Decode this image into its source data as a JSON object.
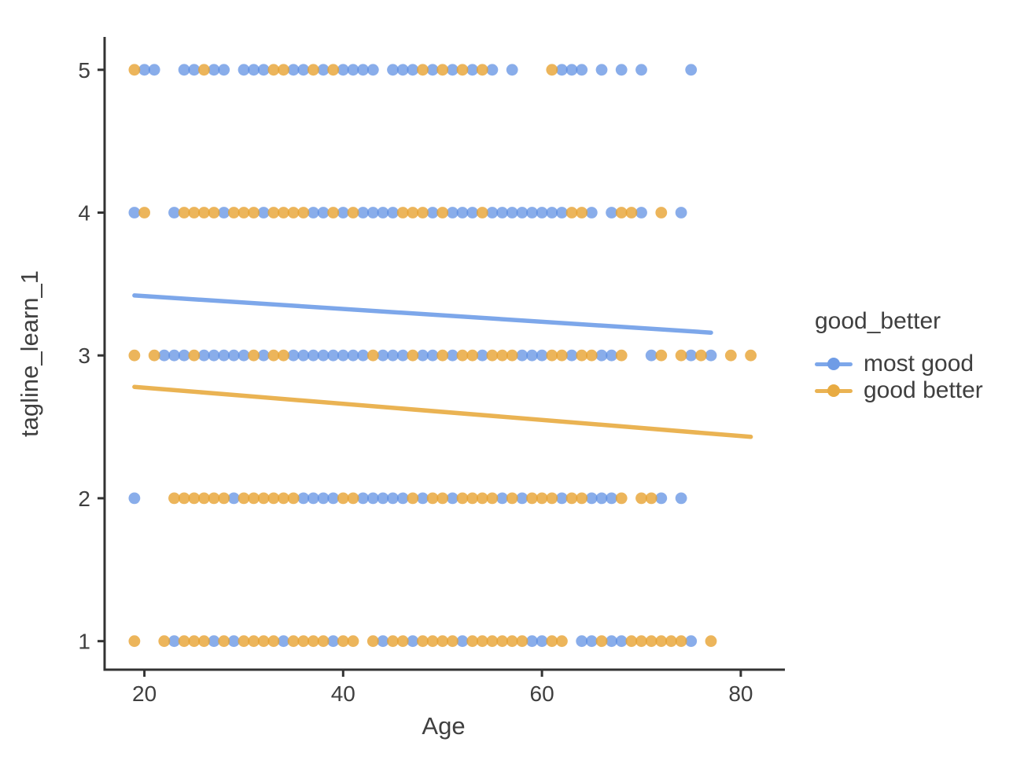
{
  "chart_data": {
    "type": "scatter",
    "title": "",
    "xlabel": "Age",
    "ylabel": "tagline_learn_1",
    "xlim": [
      16,
      84.2
    ],
    "ylim": [
      0.8,
      5.23
    ],
    "x_ticks": [
      20,
      40,
      60,
      80
    ],
    "y_ticks": [
      1,
      2,
      3,
      4,
      5
    ],
    "grid": "off",
    "colors": {
      "most_good_point": "#5b8ee2",
      "good_better_point": "#e7a232",
      "most_good_line": "#7da7ea",
      "good_better_line": "#eab353",
      "axis": "#333333",
      "text": "#3f3f3f"
    },
    "legend": {
      "title": "good_better",
      "position": "right",
      "entries": [
        {
          "name": "most good",
          "line_color": "#7da7ea",
          "point_color": "#6f9ce6"
        },
        {
          "name": "good better",
          "line_color": "#eab353",
          "point_color": "#e8ab42"
        }
      ]
    },
    "series": [
      {
        "name": "most good",
        "color": "#5b8ee2",
        "points": [
          [
            20,
            5
          ],
          [
            21,
            5
          ],
          [
            24,
            5
          ],
          [
            25,
            5
          ],
          [
            27,
            5
          ],
          [
            28,
            5
          ],
          [
            30,
            5
          ],
          [
            31,
            5
          ],
          [
            32,
            5
          ],
          [
            35,
            5
          ],
          [
            36,
            5
          ],
          [
            38,
            5
          ],
          [
            40,
            5
          ],
          [
            41,
            5
          ],
          [
            42,
            5
          ],
          [
            43,
            5
          ],
          [
            45,
            5
          ],
          [
            46,
            5
          ],
          [
            47,
            5
          ],
          [
            49,
            5
          ],
          [
            51,
            5
          ],
          [
            53,
            5
          ],
          [
            55,
            5
          ],
          [
            57,
            5
          ],
          [
            62,
            5
          ],
          [
            63,
            5
          ],
          [
            64,
            5
          ],
          [
            66,
            5
          ],
          [
            68,
            5
          ],
          [
            70,
            5
          ],
          [
            75,
            5
          ],
          [
            19,
            4
          ],
          [
            23,
            4
          ],
          [
            28,
            4
          ],
          [
            32,
            4
          ],
          [
            37,
            4
          ],
          [
            38,
            4
          ],
          [
            40,
            4
          ],
          [
            42,
            4
          ],
          [
            43,
            4
          ],
          [
            44,
            4
          ],
          [
            45,
            4
          ],
          [
            49,
            4
          ],
          [
            51,
            4
          ],
          [
            52,
            4
          ],
          [
            53,
            4
          ],
          [
            55,
            4
          ],
          [
            56,
            4
          ],
          [
            57,
            4
          ],
          [
            58,
            4
          ],
          [
            59,
            4
          ],
          [
            60,
            4
          ],
          [
            61,
            4
          ],
          [
            62,
            4
          ],
          [
            65,
            4
          ],
          [
            67,
            4
          ],
          [
            70,
            4
          ],
          [
            74,
            4
          ],
          [
            22,
            3
          ],
          [
            23,
            3
          ],
          [
            24,
            3
          ],
          [
            26,
            3
          ],
          [
            27,
            3
          ],
          [
            28,
            3
          ],
          [
            29,
            3
          ],
          [
            30,
            3
          ],
          [
            32,
            3
          ],
          [
            35,
            3
          ],
          [
            36,
            3
          ],
          [
            37,
            3
          ],
          [
            38,
            3
          ],
          [
            39,
            3
          ],
          [
            40,
            3
          ],
          [
            41,
            3
          ],
          [
            42,
            3
          ],
          [
            44,
            3
          ],
          [
            45,
            3
          ],
          [
            46,
            3
          ],
          [
            48,
            3
          ],
          [
            49,
            3
          ],
          [
            51,
            3
          ],
          [
            54,
            3
          ],
          [
            58,
            3
          ],
          [
            59,
            3
          ],
          [
            60,
            3
          ],
          [
            63,
            3
          ],
          [
            66,
            3
          ],
          [
            67,
            3
          ],
          [
            71,
            3
          ],
          [
            75,
            3
          ],
          [
            77,
            3
          ],
          [
            19,
            2
          ],
          [
            29,
            2
          ],
          [
            36,
            2
          ],
          [
            37,
            2
          ],
          [
            38,
            2
          ],
          [
            39,
            2
          ],
          [
            42,
            2
          ],
          [
            43,
            2
          ],
          [
            44,
            2
          ],
          [
            45,
            2
          ],
          [
            46,
            2
          ],
          [
            48,
            2
          ],
          [
            51,
            2
          ],
          [
            56,
            2
          ],
          [
            58,
            2
          ],
          [
            62,
            2
          ],
          [
            65,
            2
          ],
          [
            66,
            2
          ],
          [
            67,
            2
          ],
          [
            72,
            2
          ],
          [
            74,
            2
          ],
          [
            23,
            1
          ],
          [
            27,
            1
          ],
          [
            29,
            1
          ],
          [
            34,
            1
          ],
          [
            39,
            1
          ],
          [
            44,
            1
          ],
          [
            47,
            1
          ],
          [
            52,
            1
          ],
          [
            59,
            1
          ],
          [
            60,
            1
          ],
          [
            64,
            1
          ],
          [
            65,
            1
          ],
          [
            67,
            1
          ],
          [
            68,
            1
          ],
          [
            75,
            1
          ]
        ],
        "trend_line": {
          "x1": 19,
          "y1": 3.42,
          "x2": 77,
          "y2": 3.16
        }
      },
      {
        "name": "good better",
        "color": "#e7a232",
        "points": [
          [
            19,
            5
          ],
          [
            26,
            5
          ],
          [
            33,
            5
          ],
          [
            34,
            5
          ],
          [
            37,
            5
          ],
          [
            39,
            5
          ],
          [
            48,
            5
          ],
          [
            50,
            5
          ],
          [
            52,
            5
          ],
          [
            54,
            5
          ],
          [
            61,
            5
          ],
          [
            20,
            4
          ],
          [
            24,
            4
          ],
          [
            25,
            4
          ],
          [
            26,
            4
          ],
          [
            27,
            4
          ],
          [
            29,
            4
          ],
          [
            30,
            4
          ],
          [
            31,
            4
          ],
          [
            33,
            4
          ],
          [
            34,
            4
          ],
          [
            35,
            4
          ],
          [
            36,
            4
          ],
          [
            39,
            4
          ],
          [
            41,
            4
          ],
          [
            46,
            4
          ],
          [
            47,
            4
          ],
          [
            48,
            4
          ],
          [
            50,
            4
          ],
          [
            54,
            4
          ],
          [
            63,
            4
          ],
          [
            64,
            4
          ],
          [
            68,
            4
          ],
          [
            69,
            4
          ],
          [
            72,
            4
          ],
          [
            19,
            3
          ],
          [
            21,
            3
          ],
          [
            25,
            3
          ],
          [
            31,
            3
          ],
          [
            33,
            3
          ],
          [
            34,
            3
          ],
          [
            43,
            3
          ],
          [
            47,
            3
          ],
          [
            50,
            3
          ],
          [
            52,
            3
          ],
          [
            53,
            3
          ],
          [
            55,
            3
          ],
          [
            56,
            3
          ],
          [
            57,
            3
          ],
          [
            61,
            3
          ],
          [
            62,
            3
          ],
          [
            64,
            3
          ],
          [
            65,
            3
          ],
          [
            68,
            3
          ],
          [
            72,
            3
          ],
          [
            74,
            3
          ],
          [
            76,
            3
          ],
          [
            79,
            3
          ],
          [
            81,
            3
          ],
          [
            23,
            2
          ],
          [
            24,
            2
          ],
          [
            25,
            2
          ],
          [
            26,
            2
          ],
          [
            27,
            2
          ],
          [
            28,
            2
          ],
          [
            30,
            2
          ],
          [
            31,
            2
          ],
          [
            32,
            2
          ],
          [
            33,
            2
          ],
          [
            34,
            2
          ],
          [
            35,
            2
          ],
          [
            40,
            2
          ],
          [
            41,
            2
          ],
          [
            47,
            2
          ],
          [
            49,
            2
          ],
          [
            50,
            2
          ],
          [
            52,
            2
          ],
          [
            53,
            2
          ],
          [
            54,
            2
          ],
          [
            55,
            2
          ],
          [
            57,
            2
          ],
          [
            59,
            2
          ],
          [
            60,
            2
          ],
          [
            61,
            2
          ],
          [
            63,
            2
          ],
          [
            64,
            2
          ],
          [
            68,
            2
          ],
          [
            70,
            2
          ],
          [
            71,
            2
          ],
          [
            19,
            1
          ],
          [
            22,
            1
          ],
          [
            24,
            1
          ],
          [
            25,
            1
          ],
          [
            26,
            1
          ],
          [
            28,
            1
          ],
          [
            30,
            1
          ],
          [
            31,
            1
          ],
          [
            32,
            1
          ],
          [
            33,
            1
          ],
          [
            35,
            1
          ],
          [
            36,
            1
          ],
          [
            37,
            1
          ],
          [
            38,
            1
          ],
          [
            40,
            1
          ],
          [
            41,
            1
          ],
          [
            43,
            1
          ],
          [
            45,
            1
          ],
          [
            46,
            1
          ],
          [
            48,
            1
          ],
          [
            49,
            1
          ],
          [
            50,
            1
          ],
          [
            51,
            1
          ],
          [
            53,
            1
          ],
          [
            54,
            1
          ],
          [
            55,
            1
          ],
          [
            56,
            1
          ],
          [
            57,
            1
          ],
          [
            58,
            1
          ],
          [
            61,
            1
          ],
          [
            62,
            1
          ],
          [
            66,
            1
          ],
          [
            69,
            1
          ],
          [
            70,
            1
          ],
          [
            71,
            1
          ],
          [
            72,
            1
          ],
          [
            73,
            1
          ],
          [
            74,
            1
          ],
          [
            77,
            1
          ]
        ],
        "trend_line": {
          "x1": 19,
          "y1": 2.78,
          "x2": 81,
          "y2": 2.43
        }
      }
    ]
  }
}
